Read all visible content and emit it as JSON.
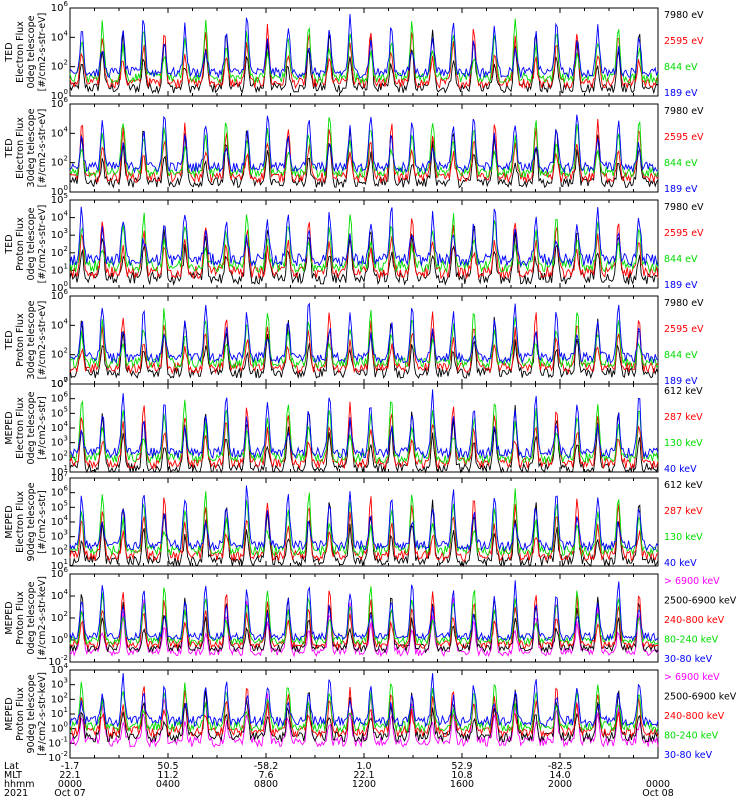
{
  "colors": {
    "black": "#000000",
    "red": "#ff0000",
    "green": "#00dd00",
    "blue": "#0000ff",
    "magenta": "#ff00ff"
  },
  "chart_data": [
    {
      "type": "line",
      "ylabel": [
        "TED",
        "Electron Flux",
        "0deg telescope",
        "[#/cm2-s-str-eV]"
      ],
      "log_scale": true,
      "ylim_exp": [
        0,
        6
      ],
      "ytick_exps": [
        0,
        2,
        4,
        6
      ],
      "baseline_exp": 1.6,
      "series": [
        {
          "name": "7980 eV",
          "color": "black"
        },
        {
          "name": "2595 eV",
          "color": "red"
        },
        {
          "name": "844 eV",
          "color": "green"
        },
        {
          "name": "189 eV",
          "color": "blue"
        }
      ]
    },
    {
      "type": "line",
      "ylabel": [
        "TED",
        "Electron Flux",
        "30deg telescope",
        "[#/cm2-s-str-eV]"
      ],
      "log_scale": true,
      "ylim_exp": [
        0,
        6
      ],
      "ytick_exps": [
        0,
        2,
        4,
        6
      ],
      "baseline_exp": 1.7,
      "series": [
        {
          "name": "7980 eV",
          "color": "black"
        },
        {
          "name": "2595 eV",
          "color": "red"
        },
        {
          "name": "844 eV",
          "color": "green"
        },
        {
          "name": "189 eV",
          "color": "blue"
        }
      ]
    },
    {
      "type": "line",
      "ylabel": [
        "TED",
        "Proton Flux",
        "0deg telescope",
        "[#/cm2-s-str-eV]"
      ],
      "log_scale": true,
      "ylim_exp": [
        0,
        5
      ],
      "ytick_exps": [
        0,
        1,
        2,
        3,
        4,
        5
      ],
      "baseline_exp": 1.6,
      "series": [
        {
          "name": "7980 eV",
          "color": "black"
        },
        {
          "name": "2595 eV",
          "color": "red"
        },
        {
          "name": "844 eV",
          "color": "green"
        },
        {
          "name": "189 eV",
          "color": "blue"
        }
      ]
    },
    {
      "type": "line",
      "ylabel": [
        "TED",
        "Proton Flux",
        "30deg telescope",
        "[#/cm2-s-str-eV]"
      ],
      "log_scale": true,
      "ylim_exp": [
        0,
        6
      ],
      "ytick_exps": [
        0,
        2,
        4,
        6
      ],
      "baseline_exp": 1.8,
      "series": [
        {
          "name": "7980 eV",
          "color": "black"
        },
        {
          "name": "2595 eV",
          "color": "red"
        },
        {
          "name": "844 eV",
          "color": "green"
        },
        {
          "name": "189 eV",
          "color": "blue"
        }
      ]
    },
    {
      "type": "line",
      "ylabel": [
        "MEPED",
        "Electron Flux",
        "0deg telescope",
        "[#/cm2-s-str]"
      ],
      "log_scale": true,
      "ylim_exp": [
        1,
        7
      ],
      "ytick_exps": [
        1,
        2,
        3,
        4,
        5,
        6,
        7
      ],
      "baseline_exp": 2.3,
      "series": [
        {
          "name": "612 keV",
          "color": "black"
        },
        {
          "name": "287 keV",
          "color": "red"
        },
        {
          "name": "130 keV",
          "color": "green"
        },
        {
          "name": "40 keV",
          "color": "blue"
        }
      ]
    },
    {
      "type": "line",
      "ylabel": [
        "MEPED",
        "Electron Flux",
        "90deg telescope",
        "[#/cm2-s-str]"
      ],
      "log_scale": true,
      "ylim_exp": [
        1,
        7
      ],
      "ytick_exps": [
        1,
        2,
        3,
        4,
        5,
        6,
        7
      ],
      "baseline_exp": 2.4,
      "series": [
        {
          "name": "612 keV",
          "color": "black"
        },
        {
          "name": "287 keV",
          "color": "red"
        },
        {
          "name": "130 keV",
          "color": "green"
        },
        {
          "name": "40 keV",
          "color": "blue"
        }
      ]
    },
    {
      "type": "line",
      "ylabel": [
        "MEPED",
        "Proton Flux",
        "0deg telescope",
        "[#/cm2-s-str-keV]"
      ],
      "log_scale": true,
      "ylim_exp": [
        -2,
        6
      ],
      "ytick_exps": [
        -2,
        0,
        2,
        4,
        6
      ],
      "baseline_exp": 0.3,
      "series": [
        {
          "name": "> 6900 keV",
          "color": "magenta"
        },
        {
          "name": "2500-6900 keV",
          "color": "black"
        },
        {
          "name": "240-800 keV",
          "color": "red"
        },
        {
          "name": "80-240 keV",
          "color": "green"
        },
        {
          "name": "30-80 keV",
          "color": "blue"
        }
      ]
    },
    {
      "type": "line",
      "ylabel": [
        "MEPED",
        "Proton Flux",
        "90deg telescope",
        "[#/cm2-s-str-keV]"
      ],
      "log_scale": true,
      "ylim_exp": [
        -2,
        4
      ],
      "ytick_exps": [
        -2,
        -1,
        0,
        1,
        2,
        3,
        4
      ],
      "baseline_exp": 0.5,
      "series": [
        {
          "name": "> 6900 keV",
          "color": "magenta"
        },
        {
          "name": "2500-6900 keV",
          "color": "black"
        },
        {
          "name": "240-800 keV",
          "color": "red"
        },
        {
          "name": "80-240 keV",
          "color": "green"
        },
        {
          "name": "30-80 keV",
          "color": "blue"
        }
      ]
    }
  ],
  "x_axis": {
    "row_labels": [
      "Lat",
      "MLT",
      "hhmm",
      "2021"
    ],
    "ticks": [
      {
        "lat": "-1.7",
        "mlt": "22.1",
        "hhmm": "0000",
        "date": "Oct 07"
      },
      {
        "lat": "50.5",
        "mlt": "11.2",
        "hhmm": "0400",
        "date": ""
      },
      {
        "lat": "-58.2",
        "mlt": "7.6",
        "hhmm": "0800",
        "date": ""
      },
      {
        "lat": "1.0",
        "mlt": "22.1",
        "hhmm": "1200",
        "date": ""
      },
      {
        "lat": "52.9",
        "mlt": "10.8",
        "hhmm": "1600",
        "date": ""
      },
      {
        "lat": "-82.5",
        "mlt": "14.0",
        "hhmm": "2000",
        "date": ""
      },
      {
        "lat": "",
        "mlt": "",
        "hhmm": "0000",
        "date": "Oct 08"
      }
    ]
  }
}
